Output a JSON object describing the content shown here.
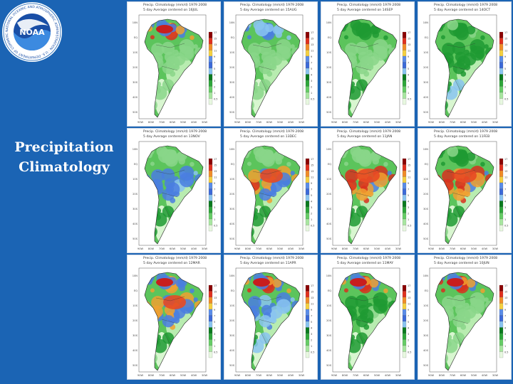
{
  "slide": {
    "title_lines": [
      "Precipitation",
      "Climatology"
    ],
    "logo": {
      "icon": "noaa-logo",
      "center_text": "NOAA",
      "ring_text": "NATIONAL OCEANIC AND ATMOSPHERIC ADMINISTRATION · U.S. DEPARTMENT OF COMMERCE"
    }
  },
  "panels": [
    {
      "header": "Precip. Climatology (mm/d) 1979 2008",
      "subheader": "5 day Average centered on 16JUL",
      "wet_north": 0.9,
      "wet_center": 0.1,
      "wet_south": 0.15
    },
    {
      "header": "Precip. Climatology (mm/d) 1979 2008",
      "subheader": "5 day Average centered on 15AUG",
      "wet_north": 0.6,
      "wet_center": 0.1,
      "wet_south": 0.2
    },
    {
      "header": "Precip. Climatology (mm/d) 1979 2008",
      "subheader": "5 day Average centered on 14SEP",
      "wet_north": 0.35,
      "wet_center": 0.2,
      "wet_south": 0.4
    },
    {
      "header": "Precip. Climatology (mm/d) 1979 2008",
      "subheader": "5 day Average centered on 14OCT",
      "wet_north": 0.3,
      "wet_center": 0.35,
      "wet_south": 0.45
    },
    {
      "header": "Precip. Climatology (mm/d) 1979 2008",
      "subheader": "5 day Average centered on 13NOV",
      "wet_north": 0.2,
      "wet_center": 0.7,
      "wet_south": 0.4
    },
    {
      "header": "Precip. Climatology (mm/d) 1979 2008",
      "subheader": "5 day Average centered on 13DEC",
      "wet_north": 0.15,
      "wet_center": 0.9,
      "wet_south": 0.35
    },
    {
      "header": "Precip. Climatology (mm/d) 1979 2008",
      "subheader": "5 day Average centered on 11JAN",
      "wet_north": 0.2,
      "wet_center": 1.0,
      "wet_south": 0.3
    },
    {
      "header": "Precip. Climatology (mm/d) 1979 2008",
      "subheader": "5 day Average centered on 11FEB",
      "wet_north": 0.3,
      "wet_center": 1.0,
      "wet_south": 0.3
    },
    {
      "header": "Precip. Climatology (mm/d) 1979 2008",
      "subheader": "5 day Average centered on 12MAR",
      "wet_north": 0.8,
      "wet_center": 0.85,
      "wet_south": 0.3
    },
    {
      "header": "Precip. Climatology (mm/d) 1979 2008",
      "subheader": "5 day Average centered on 11APR",
      "wet_north": 0.95,
      "wet_center": 0.6,
      "wet_south": 0.45
    },
    {
      "header": "Precip. Climatology (mm/d) 1979 2008",
      "subheader": "5 day Average centered on 11MAY",
      "wet_north": 0.95,
      "wet_center": 0.3,
      "wet_south": 0.3
    },
    {
      "header": "Precip. Climatology (mm/d) 1979 2008",
      "subheader": "5 day Average centered on 10JUN",
      "wet_north": 1.0,
      "wet_center": 0.15,
      "wet_south": 0.2
    }
  ],
  "legend": {
    "levels": [
      "17",
      "15",
      "13",
      "11",
      "9",
      "7",
      "5",
      "4",
      "3",
      "2",
      "1",
      "0.5"
    ],
    "colors": [
      "#8b0000",
      "#e0301e",
      "#f08c28",
      "#f5d040",
      "#5a8ce8",
      "#3c6ad8",
      "#8ac4f0",
      "#0a7a1e",
      "#2ea63a",
      "#66cc66",
      "#a8e6a0",
      "#e8f8e0"
    ]
  },
  "axis": {
    "lat_labels": [
      "10N",
      "EQ",
      "10S",
      "20S",
      "30S",
      "40S",
      "50S"
    ],
    "lon_labels": [
      "90W",
      "80W",
      "70W",
      "60W",
      "50W",
      "40W",
      "30W"
    ]
  }
}
